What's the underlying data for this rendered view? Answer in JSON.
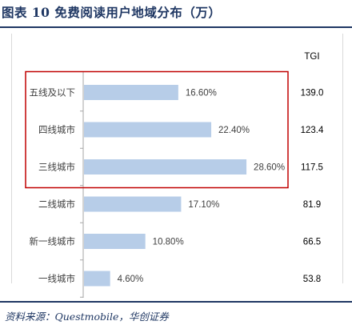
{
  "header": {
    "title": "图表 10  免费阅读用户地域分布（万）"
  },
  "footer": {
    "source": "资料来源：Questmobile，华创证券"
  },
  "chart_data": {
    "type": "bar",
    "orientation": "horizontal",
    "categories": [
      "五线及以下",
      "四线城市",
      "三线城市",
      "二线城市",
      "新一线城市",
      "一线城市"
    ],
    "series": [
      {
        "values": [
          16.6,
          22.4,
          28.6,
          17.1,
          10.8,
          4.6
        ],
        "value_labels": [
          "16.60%",
          "22.40%",
          "28.60%",
          "17.10%",
          "10.80%",
          "4.60%"
        ]
      }
    ],
    "tgi_header": "TGI",
    "tgi_values": [
      "139.0",
      "123.4",
      "117.5",
      "81.9",
      "66.5",
      "53.8"
    ],
    "highlighted_categories": [
      "五线及以下",
      "四线城市",
      "三线城市"
    ],
    "bar_color": "#b7cde8",
    "highlight_color": "#c00000",
    "axis_color": "#a6a6a6"
  }
}
